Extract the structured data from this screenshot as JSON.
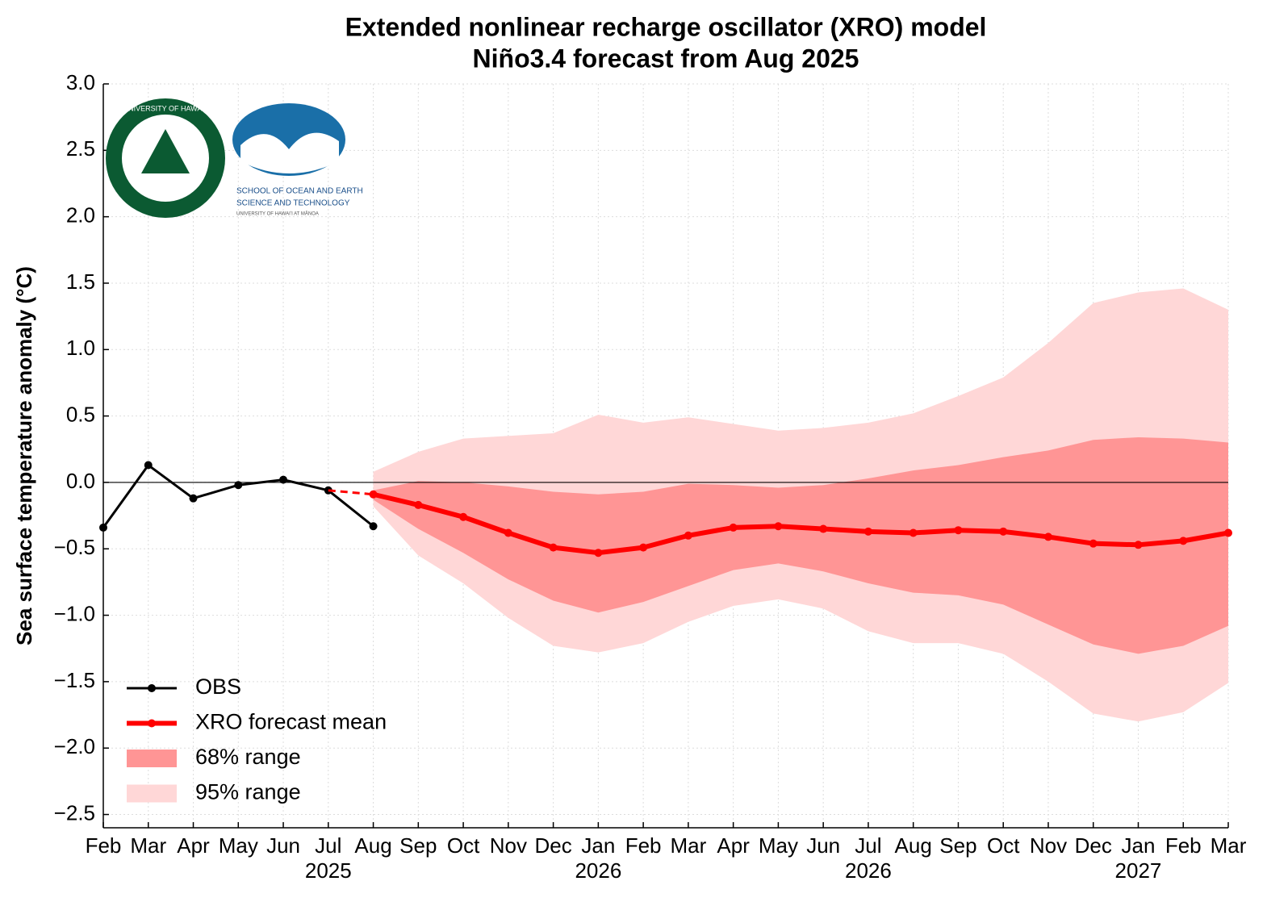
{
  "chart_data": {
    "type": "line",
    "title": "Extended nonlinear recharge oscillator (XRO) model",
    "subtitle": "Niño3.4 forecast from Aug 2025",
    "y_label": "Sea surface temperature anomaly (°C)",
    "categories": [
      "Feb",
      "Mar",
      "Apr",
      "May",
      "Jun",
      "Jul",
      "Aug",
      "Sep",
      "Oct",
      "Nov",
      "Dec",
      "Jan",
      "Feb",
      "Mar",
      "Apr",
      "May",
      "Jun",
      "Jul",
      "Aug",
      "Sep",
      "Oct",
      "Nov",
      "Dec",
      "Jan",
      "Feb",
      "Mar"
    ],
    "category_years": [
      null,
      null,
      null,
      null,
      null,
      "2025",
      null,
      null,
      null,
      null,
      null,
      "2026",
      null,
      null,
      null,
      null,
      null,
      "2026",
      null,
      null,
      null,
      null,
      null,
      "2027",
      null,
      null
    ],
    "ylim": [
      -2.6,
      3.0
    ],
    "yticks": [
      {
        "value": 3.0,
        "label": "3.0"
      },
      {
        "value": 2.5,
        "label": "2.5"
      },
      {
        "value": 2.0,
        "label": "2.0"
      },
      {
        "value": 1.5,
        "label": "1.5"
      },
      {
        "value": 1.0,
        "label": "1.0"
      },
      {
        "value": 0.5,
        "label": "0.5"
      },
      {
        "value": 0.0,
        "label": "0.0"
      },
      {
        "value": -0.5,
        "label": "−0.5"
      },
      {
        "value": -1.0,
        "label": "−1.0"
      },
      {
        "value": -1.5,
        "label": "−1.5"
      },
      {
        "value": -2.0,
        "label": "−2.0"
      },
      {
        "value": -2.5,
        "label": "−2.5"
      }
    ],
    "grid": true,
    "legend": "lower left",
    "series": [
      {
        "name": "OBS",
        "color": "#000000",
        "values": [
          -0.34,
          0.13,
          -0.12,
          -0.02,
          0.02,
          -0.06,
          -0.33,
          null,
          null,
          null,
          null,
          null,
          null,
          null,
          null,
          null,
          null,
          null,
          null,
          null,
          null,
          null,
          null,
          null,
          null,
          null
        ]
      },
      {
        "name": "XRO forecast mean",
        "color": "#ff0000",
        "values": [
          null,
          null,
          null,
          null,
          null,
          null,
          -0.09,
          -0.17,
          -0.26,
          -0.38,
          -0.49,
          -0.53,
          -0.49,
          -0.4,
          -0.34,
          -0.33,
          -0.35,
          -0.37,
          -0.38,
          -0.36,
          -0.37,
          -0.41,
          -0.46,
          -0.47,
          -0.44,
          -0.38
        ]
      }
    ],
    "bands": [
      {
        "name": "68% range",
        "color": "#ff9595",
        "lower": [
          null,
          null,
          null,
          null,
          null,
          null,
          -0.13,
          -0.35,
          -0.53,
          -0.73,
          -0.89,
          -0.98,
          -0.9,
          -0.78,
          -0.66,
          -0.61,
          -0.67,
          -0.76,
          -0.83,
          -0.85,
          -0.92,
          -1.07,
          -1.22,
          -1.29,
          -1.23,
          -1.08
        ],
        "upper": [
          null,
          null,
          null,
          null,
          null,
          null,
          -0.06,
          0.01,
          0.0,
          -0.03,
          -0.07,
          -0.09,
          -0.07,
          -0.01,
          -0.02,
          -0.04,
          -0.02,
          0.03,
          0.09,
          0.13,
          0.19,
          0.24,
          0.32,
          0.34,
          0.33,
          0.3
        ]
      },
      {
        "name": "95% range",
        "color": "#ffd7d7",
        "lower": [
          null,
          null,
          null,
          null,
          null,
          null,
          -0.18,
          -0.55,
          -0.76,
          -1.02,
          -1.23,
          -1.28,
          -1.21,
          -1.05,
          -0.93,
          -0.88,
          -0.95,
          -1.12,
          -1.21,
          -1.21,
          -1.29,
          -1.5,
          -1.74,
          -1.8,
          -1.73,
          -1.51
        ],
        "upper": [
          null,
          null,
          null,
          null,
          null,
          null,
          0.08,
          0.23,
          0.33,
          0.35,
          0.37,
          0.51,
          0.45,
          0.49,
          0.44,
          0.39,
          0.41,
          0.45,
          0.52,
          0.65,
          0.79,
          1.05,
          1.35,
          1.43,
          1.46,
          1.3
        ]
      }
    ]
  },
  "logo_texts": [
    "UNIVERSITY OF HAWAIʻI",
    "SCHOOL OF OCEAN AND EARTH",
    "SCIENCE AND TECHNOLOGY",
    "UNIVERSITY OF HAWAIʻI AT MĀNOA"
  ]
}
